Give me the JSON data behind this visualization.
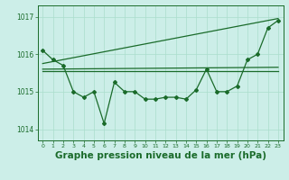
{
  "background_color": "#cceee8",
  "plot_bg_color": "#cceee8",
  "grid_color": "#aaddcc",
  "line_color": "#1a6b2a",
  "xlabel": "Graphe pression niveau de la mer (hPa)",
  "xlabel_fontsize": 7.5,
  "ylim": [
    1013.7,
    1017.3
  ],
  "xlim": [
    -0.5,
    23.5
  ],
  "yticks": [
    1014,
    1015,
    1016,
    1017
  ],
  "xticks": [
    0,
    1,
    2,
    3,
    4,
    5,
    6,
    7,
    8,
    9,
    10,
    11,
    12,
    13,
    14,
    15,
    16,
    17,
    18,
    19,
    20,
    21,
    22,
    23
  ],
  "series": [
    {
      "x": [
        0,
        1,
        2,
        3,
        4,
        5,
        6,
        7,
        8,
        9,
        10,
        11,
        12,
        13,
        14,
        15,
        16,
        17,
        18,
        19,
        20,
        21,
        22,
        23
      ],
      "y": [
        1016.1,
        1015.85,
        1015.7,
        1015.0,
        1014.85,
        1015.0,
        1014.15,
        1015.25,
        1015.0,
        1015.0,
        1014.8,
        1014.8,
        1014.85,
        1014.85,
        1014.8,
        1015.05,
        1015.6,
        1015.0,
        1015.0,
        1015.15,
        1015.85,
        1016.0,
        1016.7,
        1016.9
      ],
      "marker": "D",
      "markersize": 2.0,
      "linewidth": 0.9
    },
    {
      "x": [
        0,
        23
      ],
      "y": [
        1015.75,
        1016.95
      ],
      "marker": null,
      "linewidth": 0.9
    },
    {
      "x": [
        0,
        23
      ],
      "y": [
        1015.6,
        1015.65
      ],
      "marker": null,
      "linewidth": 0.9
    },
    {
      "x": [
        0,
        23
      ],
      "y": [
        1015.55,
        1015.55
      ],
      "marker": null,
      "linewidth": 0.9
    }
  ]
}
